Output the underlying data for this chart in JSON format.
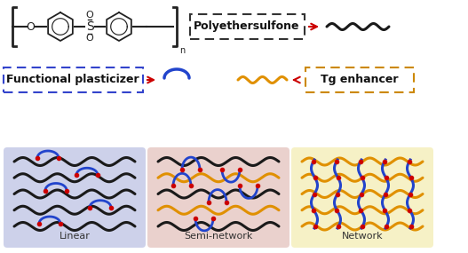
{
  "bg_color": "#ffffff",
  "polyethersulfone_label": "Polyethersulfone",
  "functional_plasticizer_label": "Functional plasticizer",
  "tg_enhancer_label": "Tg enhancer",
  "linear_label": "Linear",
  "semi_network_label": "Semi-network",
  "network_label": "Network",
  "pes_box_color": "#333333",
  "fp_box_color": "#3344cc",
  "tg_box_color": "#cc8800",
  "linear_bg": "#c8cce8",
  "semi_bg": "#e8ccc8",
  "network_bg": "#f5f0c0",
  "black_line_color": "#1a1a1a",
  "orange_line_color": "#e09000",
  "blue_line_color": "#2244cc",
  "red_dot_color": "#cc0000",
  "arrow_color": "#cc0000",
  "struct_color": "#222222"
}
